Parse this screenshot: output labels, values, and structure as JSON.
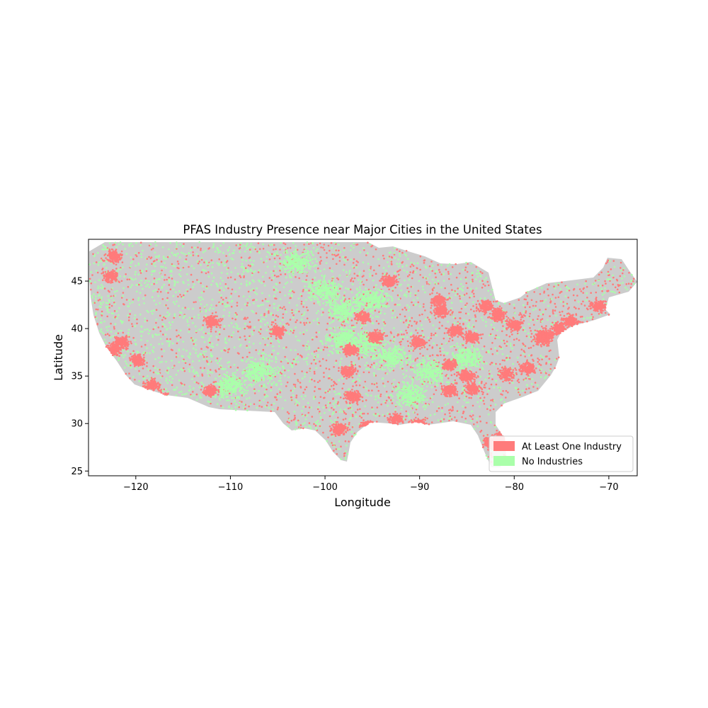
{
  "chart_data": {
    "type": "scatter",
    "title": "PFAS Industry Presence near Major Cities in the United States",
    "xlabel": "Longitude",
    "ylabel": "Latitude",
    "xlim": [
      -125,
      -67
    ],
    "ylim": [
      24.5,
      49.4
    ],
    "xticks": [
      -120,
      -110,
      -100,
      -90,
      -80,
      -70
    ],
    "xtick_labels": [
      "−120",
      "−110",
      "−100",
      "−90",
      "−80",
      "−70"
    ],
    "yticks": [
      25,
      30,
      35,
      40,
      45
    ],
    "ytick_labels": [
      "25",
      "30",
      "35",
      "40",
      "45"
    ],
    "grid": false,
    "legend_position": "lower-right",
    "basemap_color": "#cccccc",
    "series": [
      {
        "name": "At Least One Industry",
        "color": "#ff7b7b",
        "clusters": [
          {
            "lon": -122.3,
            "lat": 47.6
          },
          {
            "lon": -122.6,
            "lat": 45.5
          },
          {
            "lon": -122.3,
            "lat": 37.8
          },
          {
            "lon": -121.5,
            "lat": 38.6
          },
          {
            "lon": -119.8,
            "lat": 36.7
          },
          {
            "lon": -118.2,
            "lat": 34.0
          },
          {
            "lon": -117.1,
            "lat": 32.7
          },
          {
            "lon": -112.1,
            "lat": 33.4
          },
          {
            "lon": -111.9,
            "lat": 40.7
          },
          {
            "lon": -104.9,
            "lat": 39.7
          },
          {
            "lon": -97.3,
            "lat": 37.7
          },
          {
            "lon": -96.0,
            "lat": 41.2
          },
          {
            "lon": -94.6,
            "lat": 39.1
          },
          {
            "lon": -93.2,
            "lat": 45.0
          },
          {
            "lon": -97.5,
            "lat": 35.5
          },
          {
            "lon": -97.0,
            "lat": 32.8
          },
          {
            "lon": -95.4,
            "lat": 29.8
          },
          {
            "lon": -98.5,
            "lat": 29.4
          },
          {
            "lon": -90.1,
            "lat": 29.9
          },
          {
            "lon": -92.5,
            "lat": 30.5
          },
          {
            "lon": -87.7,
            "lat": 41.9
          },
          {
            "lon": -88.0,
            "lat": 43.0
          },
          {
            "lon": -90.2,
            "lat": 38.6
          },
          {
            "lon": -86.2,
            "lat": 39.8
          },
          {
            "lon": -83.0,
            "lat": 42.4
          },
          {
            "lon": -84.5,
            "lat": 39.1
          },
          {
            "lon": -81.7,
            "lat": 41.5
          },
          {
            "lon": -80.0,
            "lat": 40.4
          },
          {
            "lon": -86.8,
            "lat": 36.2
          },
          {
            "lon": -84.4,
            "lat": 33.7
          },
          {
            "lon": -86.8,
            "lat": 33.5
          },
          {
            "lon": -80.8,
            "lat": 35.2
          },
          {
            "lon": -77.0,
            "lat": 38.9
          },
          {
            "lon": -75.2,
            "lat": 40.0
          },
          {
            "lon": -74.0,
            "lat": 40.7
          },
          {
            "lon": -71.1,
            "lat": 42.4
          },
          {
            "lon": -81.4,
            "lat": 28.5
          },
          {
            "lon": -80.2,
            "lat": 26.2
          },
          {
            "lon": -82.5,
            "lat": 28.0
          },
          {
            "lon": -85.0,
            "lat": 35.0
          },
          {
            "lon": -78.6,
            "lat": 35.8
          },
          {
            "lon": -76.6,
            "lat": 39.3
          }
        ]
      },
      {
        "name": "No Industries",
        "color": "#aaffaa",
        "clusters": [
          {
            "lon": -100.0,
            "lat": 44.0
          },
          {
            "lon": -98.0,
            "lat": 42.0
          },
          {
            "lon": -95.0,
            "lat": 43.0
          },
          {
            "lon": -93.0,
            "lat": 37.0
          },
          {
            "lon": -95.5,
            "lat": 38.5
          },
          {
            "lon": -98.0,
            "lat": 39.0
          },
          {
            "lon": -110.0,
            "lat": 34.0
          },
          {
            "lon": -107.0,
            "lat": 35.5
          },
          {
            "lon": -85.0,
            "lat": 37.0
          },
          {
            "lon": -91.0,
            "lat": 33.0
          },
          {
            "lon": -89.0,
            "lat": 35.5
          },
          {
            "lon": -103.0,
            "lat": 47.0
          }
        ]
      }
    ]
  }
}
